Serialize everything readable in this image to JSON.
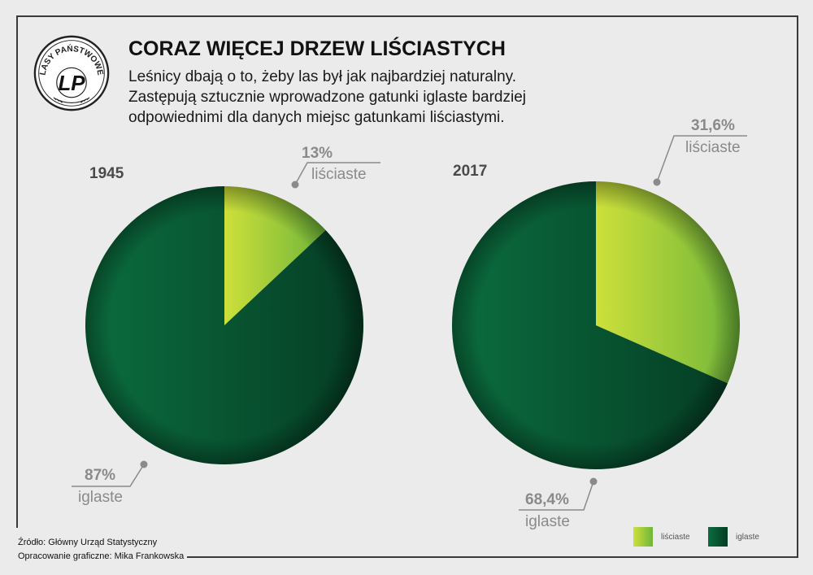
{
  "title": "CORAZ WIĘCEJ DRZEW LIŚCIASTYCH",
  "subtitle_lines": [
    "Leśnicy dbają o to, żeby las był jak najbardziej naturalny.",
    "Zastępują sztucznie wprowadzone gatunki iglaste bardziej",
    "odpowiednimi dla danych miejsc gatunkami liściastymi."
  ],
  "logo": {
    "ring_text": "LASY PAŃSTWOWE",
    "monogram": "LP",
    "icon": "lasy-panstwowe-logo"
  },
  "colors": {
    "lisciaste_light": "#cde03a",
    "lisciaste_dark": "#6fb53a",
    "iglaste_light": "#0b6d3f",
    "iglaste_dark": "#053d24",
    "frame": "#3a3a3a",
    "callout": "#8a8a8a"
  },
  "chart_data": [
    {
      "type": "pie",
      "title": "1945",
      "series": [
        {
          "name": "liściaste",
          "value": 13,
          "label": "13%"
        },
        {
          "name": "iglaste",
          "value": 87,
          "label": "87%"
        }
      ]
    },
    {
      "type": "pie",
      "title": "2017",
      "series": [
        {
          "name": "liściaste",
          "value": 31.6,
          "label": "31,6%"
        },
        {
          "name": "iglaste",
          "value": 68.4,
          "label": "68,4%"
        }
      ]
    }
  ],
  "legend": [
    {
      "label": "liściaste"
    },
    {
      "label": "iglaste"
    }
  ],
  "source": "Źródło: Główny Urząd Statystyczny",
  "credit": "Opracowanie graficzne: Mika Frankowska"
}
